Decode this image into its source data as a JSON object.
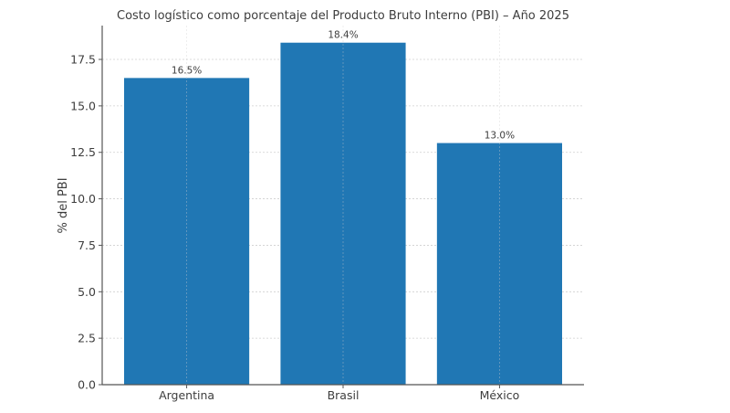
{
  "chart_data": {
    "type": "bar",
    "title": "Costo logístico como porcentaje del Producto Bruto Interno (PBI) – Año 2025",
    "xlabel": "",
    "ylabel": "% del PBI",
    "categories": [
      "Argentina",
      "Brasil",
      "México"
    ],
    "values": [
      16.5,
      18.4,
      13.0
    ],
    "data_labels": [
      "16.5%",
      "18.4%",
      "13.0%"
    ],
    "yticks": [
      "0.0",
      "2.5",
      "5.0",
      "7.5",
      "10.0",
      "12.5",
      "15.0",
      "17.5"
    ],
    "ylim": [
      0,
      19.32
    ],
    "grid": true,
    "legend": "none",
    "colors": {
      "bar": "#2077b4",
      "grid": "#cfcfcf",
      "axis": "#555555"
    }
  }
}
